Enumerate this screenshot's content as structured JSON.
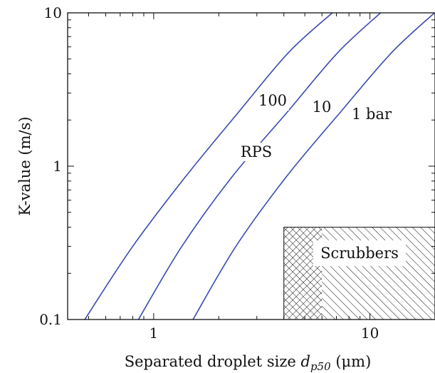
{
  "chart_data": {
    "type": "line",
    "xscale": "log",
    "yscale": "log",
    "xlim": [
      0.4,
      20
    ],
    "ylim": [
      0.1,
      10
    ],
    "x_ticks": [
      {
        "value": 1,
        "label": "1"
      },
      {
        "value": 10,
        "label": "10"
      }
    ],
    "y_ticks": [
      {
        "value": 0.1,
        "label": "0.1"
      },
      {
        "value": 1,
        "label": "1"
      },
      {
        "value": 10,
        "label": "10"
      }
    ],
    "xlabel": {
      "prefix": "Separated droplet size ",
      "var": "d",
      "sub": "p50",
      "unit": "(μm)"
    },
    "ylabel": "K-value (m/s)",
    "grid": false,
    "line_color": "#3a4bb0",
    "series": [
      {
        "name": "100",
        "x": [
          0.48,
          0.8,
          1.4,
          2.5,
          4.2,
          6.7
        ],
        "y": [
          0.1,
          0.3,
          0.85,
          2.3,
          5.5,
          10
        ]
      },
      {
        "name": "10",
        "x": [
          0.85,
          1.35,
          2.3,
          4.2,
          7.1,
          11.2
        ],
        "y": [
          0.1,
          0.3,
          0.85,
          2.3,
          5.5,
          10
        ]
      },
      {
        "name": "1 bar",
        "x": [
          1.52,
          2.4,
          4.1,
          7.4,
          12.6,
          19.9
        ],
        "y": [
          0.1,
          0.3,
          0.85,
          2.3,
          5.5,
          10
        ]
      }
    ],
    "annotations": [
      {
        "text": "RPS",
        "x": 2.7,
        "y": 1.2
      },
      {
        "text": "Scrubbers",
        "region": {
          "x": [
            4,
            20
          ],
          "y": [
            0.1,
            0.4
          ]
        },
        "crosshatch_x": [
          4,
          6
        ],
        "hatch": "diagonal"
      }
    ]
  }
}
